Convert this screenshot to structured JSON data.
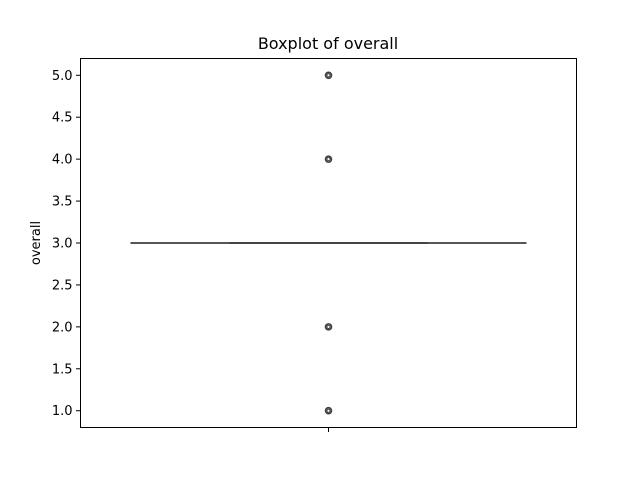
{
  "chart_data": {
    "type": "box",
    "title": "Boxplot of overall",
    "xlabel": "",
    "ylabel": "overall",
    "ylim": [
      0.8,
      5.2
    ],
    "yticks": [
      "1.0",
      "1.5",
      "2.0",
      "2.5",
      "3.0",
      "3.5",
      "4.0",
      "4.5",
      "5.0"
    ],
    "series": [
      {
        "q1": 3.0,
        "median": 3.0,
        "q3": 3.0,
        "whisker_low": 3.0,
        "whisker_high": 3.0,
        "outliers": [
          1.0,
          2.0,
          4.0,
          5.0
        ]
      }
    ],
    "grid": false,
    "colors": {
      "box_edge": "#3f3f3f",
      "outlier_edge": "#3f3f3f",
      "axes": "#000000"
    }
  }
}
